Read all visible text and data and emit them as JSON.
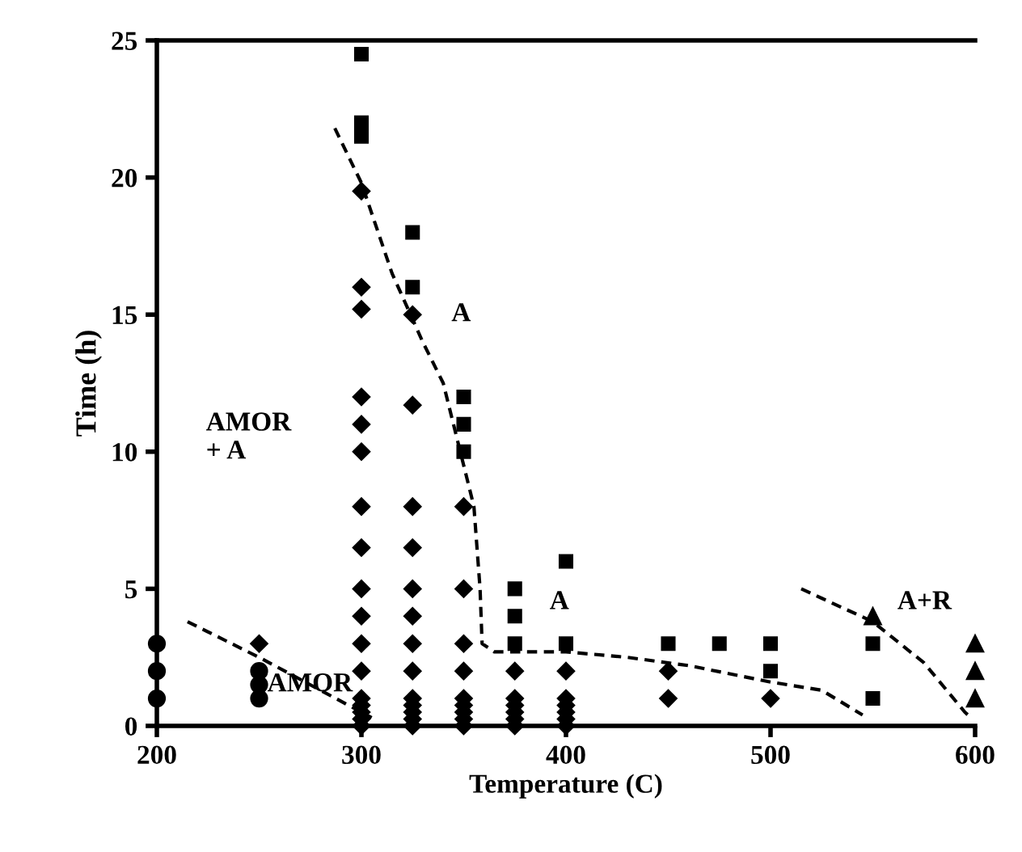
{
  "chart_data": {
    "type": "scatter",
    "xlabel": "Temperature (C)",
    "ylabel": "Time (h)",
    "xlim": [
      200,
      600
    ],
    "ylim": [
      0,
      25
    ],
    "xticks": [
      200,
      300,
      400,
      500,
      600
    ],
    "yticks": [
      0,
      5,
      10,
      15,
      20,
      25
    ],
    "grid": false,
    "series": [
      {
        "color": "#000000",
        "marker": "circle",
        "x": [
          200,
          200,
          200,
          250,
          250,
          250
        ],
        "values": [
          1,
          2,
          3,
          1,
          1.5,
          2
        ]
      },
      {
        "color": "#000000",
        "marker": "diamond",
        "x": [
          250,
          300,
          300,
          300,
          300,
          300,
          300,
          300,
          300,
          300,
          300,
          300,
          300,
          300,
          300,
          300,
          300,
          300,
          325,
          325,
          325,
          325,
          325,
          325,
          325,
          325,
          325,
          325,
          325,
          325,
          325,
          350,
          350,
          350,
          350,
          350,
          350,
          350,
          350,
          350,
          375,
          375,
          375,
          375,
          375,
          375,
          400,
          400,
          400,
          400,
          400,
          400,
          450,
          450,
          500
        ],
        "values": [
          3,
          19.5,
          16,
          15.2,
          12,
          11,
          10,
          8,
          6.5,
          5,
          4,
          3,
          2,
          1,
          0.75,
          0.5,
          0.25,
          0,
          15,
          11.7,
          8,
          6.5,
          5,
          4,
          3,
          2,
          1,
          0.75,
          0.5,
          0.25,
          0,
          8,
          5,
          3,
          2,
          1,
          0.75,
          0.5,
          0.25,
          0,
          2,
          1,
          0.75,
          0.5,
          0.25,
          0,
          2,
          1,
          0.75,
          0.5,
          0.25,
          0,
          2,
          1,
          1
        ]
      },
      {
        "color": "#000000",
        "marker": "square",
        "x": [
          300,
          300,
          300,
          325,
          325,
          350,
          350,
          350,
          375,
          375,
          375,
          400,
          400,
          450,
          475,
          500,
          500,
          550,
          550
        ],
        "values": [
          24.5,
          22,
          21.5,
          18,
          16,
          12,
          11,
          10,
          5,
          4,
          3,
          6,
          3,
          3,
          3,
          3,
          2,
          3,
          1
        ]
      },
      {
        "color": "#000000",
        "marker": "triangle",
        "x": [
          550,
          600,
          600,
          600
        ],
        "values": [
          4,
          3,
          2,
          1
        ]
      },
      {
        "type": "line",
        "color": "#000000",
        "line_style": "dashed",
        "marker": "none",
        "x": [
          215,
          250,
          300,
          305
        ],
        "values": [
          3.8,
          2.5,
          0.5,
          0.3
        ]
      },
      {
        "type": "line",
        "color": "#000000",
        "line_style": "dashed",
        "marker": "none",
        "x": [
          287,
          300,
          315,
          330,
          340,
          355,
          358,
          359,
          365,
          400,
          430,
          460,
          500,
          525,
          545
        ],
        "values": [
          21.8,
          19.8,
          16.5,
          14,
          12.5,
          8,
          5,
          3,
          2.7,
          2.7,
          2.5,
          2.2,
          1.6,
          1.3,
          0.4
        ]
      },
      {
        "type": "line",
        "color": "#000000",
        "line_style": "dashed",
        "marker": "none",
        "x": [
          515,
          550,
          575,
          595,
          598
        ],
        "values": [
          5,
          3.8,
          2.3,
          0.5,
          0.3
        ]
      }
    ],
    "annotations": [
      "A",
      "AMOR\n+ A",
      "AMOR",
      "A",
      "A+R"
    ]
  }
}
